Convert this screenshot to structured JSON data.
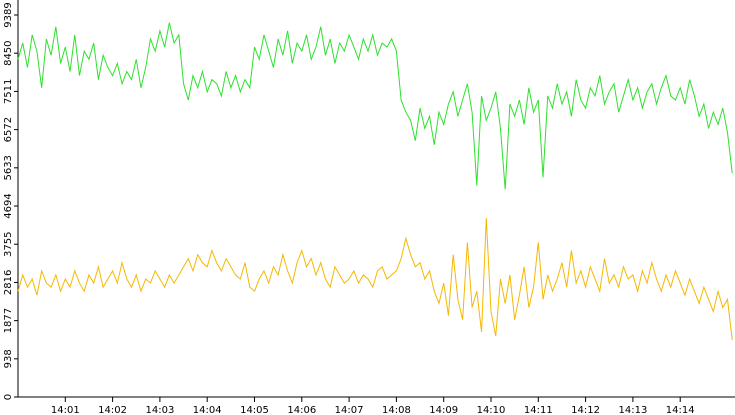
{
  "chart_data": {
    "type": "line",
    "categories": [
      null,
      null,
      null,
      null,
      null,
      null,
      null,
      null,
      null,
      null,
      "14:01",
      null,
      null,
      null,
      null,
      null,
      null,
      null,
      null,
      null,
      "14:02",
      null,
      null,
      null,
      null,
      null,
      null,
      null,
      null,
      null,
      "14:03",
      null,
      null,
      null,
      null,
      null,
      null,
      null,
      null,
      null,
      "14:04",
      null,
      null,
      null,
      null,
      null,
      null,
      null,
      null,
      null,
      "14:05",
      null,
      null,
      null,
      null,
      null,
      null,
      null,
      null,
      null,
      "14:06",
      null,
      null,
      null,
      null,
      null,
      null,
      null,
      null,
      null,
      "14:07",
      null,
      null,
      null,
      null,
      null,
      null,
      null,
      null,
      null,
      "14:08",
      null,
      null,
      null,
      null,
      null,
      null,
      null,
      null,
      null,
      "14:09",
      null,
      null,
      null,
      null,
      null,
      null,
      null,
      null,
      null,
      "14:10",
      null,
      null,
      null,
      null,
      null,
      null,
      null,
      null,
      null,
      "14:11",
      null,
      null,
      null,
      null,
      null,
      null,
      null,
      null,
      null,
      "14:12",
      null,
      null,
      null,
      null,
      null,
      null,
      null,
      null,
      null,
      "14:13",
      null,
      null,
      null,
      null,
      null,
      null,
      null,
      null,
      null,
      "14:14",
      null,
      null,
      null,
      null,
      null,
      null,
      null,
      null,
      null,
      null,
      null
    ],
    "series": [
      {
        "color": "#2ee02e",
        "values": [
          8300,
          8700,
          8100,
          8900,
          8500,
          7600,
          8800,
          8400,
          9100,
          8200,
          8600,
          8000,
          8900,
          7900,
          8500,
          8300,
          8700,
          7800,
          8400,
          8100,
          7900,
          8200,
          7700,
          8000,
          7800,
          8300,
          7600,
          8100,
          8800,
          8500,
          9000,
          8600,
          9200,
          8700,
          8900,
          7700,
          7300,
          7900,
          7600,
          8000,
          7500,
          7800,
          7700,
          7400,
          8000,
          7600,
          7900,
          7500,
          7800,
          7600,
          8600,
          8300,
          8900,
          8500,
          8100,
          8800,
          8400,
          9000,
          8200,
          8700,
          8500,
          8900,
          8300,
          8600,
          9100,
          8400,
          8800,
          8200,
          8700,
          8500,
          8900,
          8600,
          8300,
          8800,
          8500,
          8900,
          8400,
          8700,
          8600,
          8800,
          8500,
          7300,
          7000,
          6800,
          6300,
          7100,
          6600,
          6900,
          6200,
          7000,
          6700,
          7200,
          7500,
          6900,
          7300,
          7700,
          7000,
          5200,
          7400,
          6800,
          7100,
          7500,
          6600,
          5100,
          7200,
          6900,
          7300,
          6700,
          7600,
          7000,
          7300,
          5400,
          7400,
          7100,
          7700,
          7200,
          7500,
          6900,
          7800,
          7300,
          7100,
          7600,
          7400,
          7900,
          7200,
          7500,
          7700,
          7000,
          7400,
          7800,
          7300,
          7600,
          7100,
          7500,
          7700,
          7200,
          7600,
          7900,
          7400,
          7300,
          7600,
          7200,
          7800,
          7400,
          6900,
          7200,
          6600,
          7000,
          6700,
          7100,
          6500,
          5500
        ]
      },
      {
        "color": "#f5b800",
        "values": [
          2600,
          3000,
          2700,
          2900,
          2500,
          3100,
          2800,
          2700,
          3000,
          2600,
          2900,
          2700,
          3100,
          2800,
          2600,
          3000,
          2800,
          3200,
          2700,
          2900,
          3100,
          2800,
          3300,
          2900,
          2700,
          3000,
          2600,
          2900,
          2800,
          3100,
          2900,
          2700,
          3000,
          2800,
          3000,
          3200,
          3400,
          3100,
          3500,
          3300,
          3200,
          3600,
          3300,
          3100,
          3400,
          3200,
          3000,
          2900,
          3300,
          2700,
          2600,
          2900,
          3100,
          2800,
          3200,
          3000,
          3500,
          3100,
          2800,
          3300,
          3600,
          3200,
          3400,
          3000,
          3300,
          2900,
          2700,
          3200,
          3000,
          2800,
          2900,
          3100,
          2800,
          3000,
          2900,
          2700,
          3100,
          3200,
          2900,
          3000,
          3100,
          3400,
          3900,
          3500,
          3200,
          3300,
          2900,
          3100,
          2600,
          2300,
          2800,
          2000,
          3500,
          2400,
          1900,
          3800,
          2200,
          2600,
          1600,
          4400,
          2100,
          1500,
          2900,
          2300,
          3000,
          1900,
          2500,
          3200,
          2200,
          2700,
          3800,
          2400,
          3000,
          2600,
          2900,
          3300,
          2700,
          3600,
          2800,
          3100,
          2700,
          3200,
          2900,
          2600,
          3400,
          2800,
          3000,
          2700,
          3200,
          2900,
          3000,
          2600,
          3100,
          2800,
          3300,
          2900,
          2600,
          3000,
          2700,
          3100,
          2800,
          2500,
          2900,
          2600,
          2300,
          2700,
          2400,
          2100,
          2600,
          2200,
          2400,
          1400
        ]
      }
    ],
    "ylim": [
      0,
      9389
    ],
    "yticks": [
      0,
      938,
      1877,
      2816,
      3755,
      4694,
      5633,
      6572,
      7511,
      8450,
      9389
    ]
  }
}
